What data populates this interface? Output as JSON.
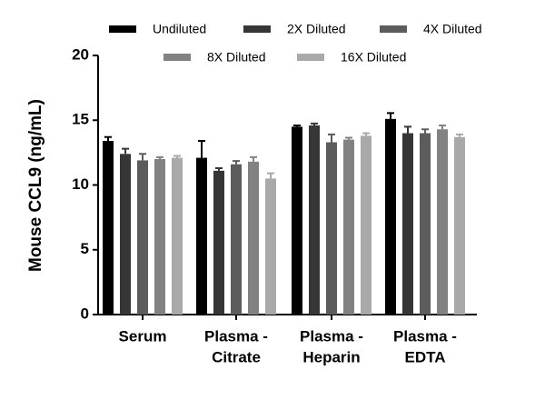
{
  "chart_data": {
    "type": "bar",
    "ylabel": "Mouse CCL9 (ng/mL)",
    "categories": [
      [
        "Serum"
      ],
      [
        "Plasma -",
        "Citrate"
      ],
      [
        "Plasma -",
        "Heparin"
      ],
      [
        "Plasma -",
        "EDTA"
      ]
    ],
    "series": [
      {
        "name": "Undiluted",
        "color": "#000000",
        "values": [
          13.4,
          12.1,
          14.5,
          15.1
        ],
        "errors": [
          0.3,
          1.3,
          0.1,
          0.45
        ]
      },
      {
        "name": "2X Diluted",
        "color": "#363636",
        "values": [
          12.4,
          11.1,
          14.6,
          14.0
        ],
        "errors": [
          0.4,
          0.2,
          0.15,
          0.5
        ]
      },
      {
        "name": "4X Diluted",
        "color": "#5c5c5c",
        "values": [
          11.9,
          11.6,
          13.3,
          14.0
        ],
        "errors": [
          0.5,
          0.25,
          0.6,
          0.3
        ]
      },
      {
        "name": "8X Diluted",
        "color": "#828282",
        "values": [
          12.0,
          11.8,
          13.5,
          14.3
        ],
        "errors": [
          0.15,
          0.35,
          0.15,
          0.3
        ]
      },
      {
        "name": "16X Diluted",
        "color": "#a9a9a9",
        "values": [
          12.1,
          10.5,
          13.8,
          13.7
        ],
        "errors": [
          0.15,
          0.4,
          0.2,
          0.2
        ]
      }
    ],
    "ylim": [
      0,
      20
    ],
    "yticks": [
      0,
      5,
      10,
      15,
      20
    ]
  }
}
